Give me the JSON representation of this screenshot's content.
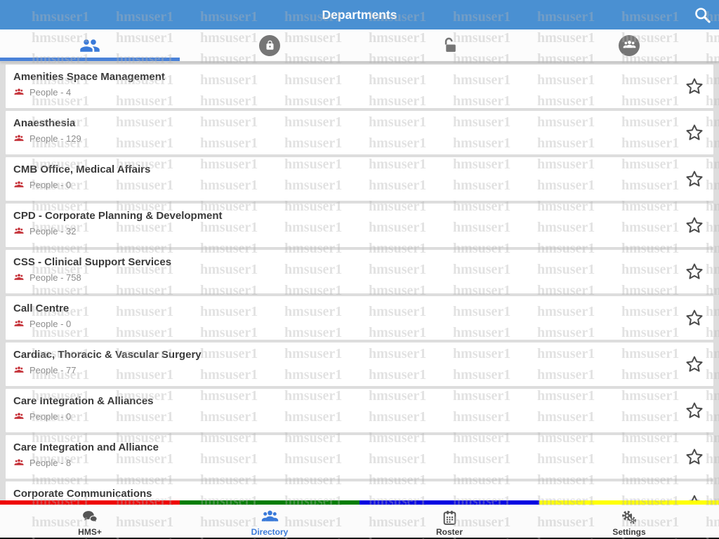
{
  "header": {
    "title": "Departments"
  },
  "filter_tabs": [
    {
      "id": "people",
      "active": true
    },
    {
      "id": "locked",
      "active": false
    },
    {
      "id": "unlocked",
      "active": false
    },
    {
      "id": "groups",
      "active": false
    }
  ],
  "departments": [
    {
      "name": "Amenities Space Management",
      "people_label": "People - 4"
    },
    {
      "name": "Anaesthesia",
      "people_label": "People - 129"
    },
    {
      "name": "CMB Office, Medical Affairs",
      "people_label": "People - 0"
    },
    {
      "name": "CPD - Corporate Planning & Development",
      "people_label": "People - 32"
    },
    {
      "name": "CSS - Clinical Support Services",
      "people_label": "People - 758"
    },
    {
      "name": "Call Centre",
      "people_label": "People - 0"
    },
    {
      "name": "Cardiac, Thoracic & Vascular Surgery",
      "people_label": "People - 77"
    },
    {
      "name": "Care Integration & Alliances",
      "people_label": "People - 0"
    },
    {
      "name": "Care Integration and Alliance",
      "people_label": "People - 8"
    },
    {
      "name": "Corporate Communications",
      "people_label": ""
    }
  ],
  "bottom_nav": [
    {
      "label": "HMS+",
      "active": false
    },
    {
      "label": "Directory",
      "active": true
    },
    {
      "label": "Roster",
      "active": false
    },
    {
      "label": "Settings",
      "active": false
    }
  ],
  "stripe_colors": [
    "#ee0000",
    "#007d00",
    "#0000e1",
    "#ffff00"
  ],
  "watermark": {
    "text": "hmsuser1"
  },
  "colors": {
    "header_bg": "#4a90d2",
    "accent_blue": "#3a7ad9",
    "people_red": "#c5333a",
    "icon_gray": "#757575"
  }
}
